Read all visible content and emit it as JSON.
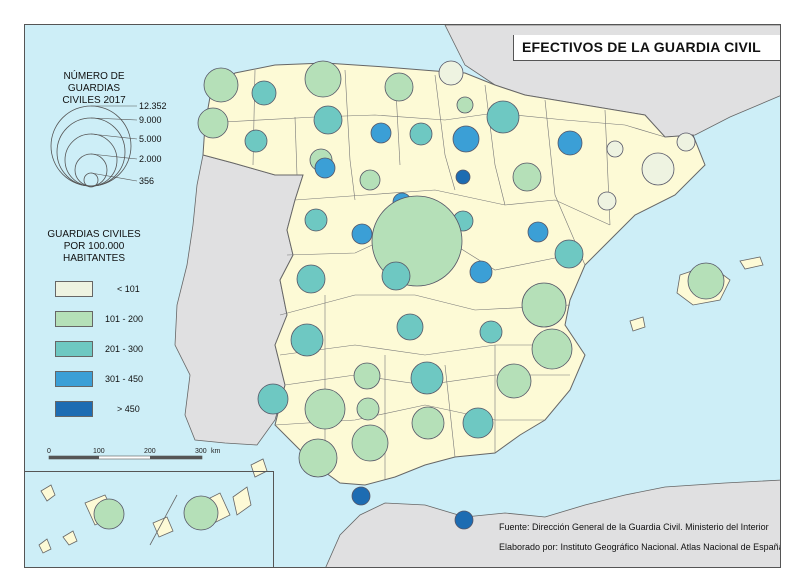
{
  "title": "EFECTIVOS DE LA GUARDIA CIVIL",
  "size_legend": {
    "title_line1": "NÚMERO DE GUARDIAS",
    "title_line2": "CIVILES 2017",
    "values": [
      "12.352",
      "9.000",
      "5.000",
      "2.000",
      "356"
    ]
  },
  "rate_legend": {
    "title_line1": "GUARDIAS CIVILES",
    "title_line2": "POR 100.000",
    "title_line3": "HABITANTES",
    "classes": [
      {
        "label": "< 101",
        "color": "#eef3e1"
      },
      {
        "label": "101 - 200",
        "color": "#b5e0b8"
      },
      {
        "label": "201 - 300",
        "color": "#6ec8c2"
      },
      {
        "label": "301 - 450",
        "color": "#3b9fd6"
      },
      {
        "label": "> 450",
        "color": "#1d6cb2"
      }
    ]
  },
  "scale_bar": {
    "ticks": [
      "0",
      "100",
      "200",
      "300"
    ],
    "unit": "km"
  },
  "source": "Fuente: Dirección General de la Guardia Civil. Ministerio del Interior",
  "credit": "Elaborado por: Instituto Geográfico Nacional. Atlas Nacional de España",
  "colors": {
    "sea": "#cdeef7",
    "spain": "#fdfad6",
    "neighbors": "#e0e0e1",
    "border": "#666666"
  }
}
